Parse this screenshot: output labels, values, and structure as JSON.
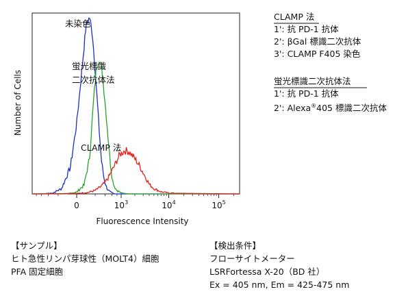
{
  "chart_data": {
    "type": "line",
    "xlabel": "Fluorescence Intensity",
    "ylabel": "Number of Cells",
    "xscale": "biexponential",
    "x_tick_labels": [
      {
        "base": "0",
        "exp": ""
      },
      {
        "base": "10",
        "exp": "3"
      },
      {
        "base": "10",
        "exp": "4"
      },
      {
        "base": "10",
        "exp": "5"
      }
    ],
    "x_tick_values": [
      0,
      1000,
      10000,
      100000
    ],
    "xlim": [
      -1000,
      260000
    ],
    "ylim": [
      0,
      100
    ],
    "grid": false,
    "series": [
      {
        "name": "未染色",
        "color": "#1a2bd0",
        "x": [
          -1000,
          -600,
          -300,
          -150,
          -50,
          0,
          40,
          80,
          120,
          160,
          200,
          240,
          280,
          320,
          380,
          450,
          550,
          700,
          1000,
          100000
        ],
        "y": [
          0,
          0,
          0.5,
          3,
          15,
          40,
          70,
          95,
          100,
          90,
          70,
          50,
          32,
          18,
          8,
          3,
          1,
          0,
          0,
          0
        ]
      },
      {
        "name": "蛍光標識二次抗体法",
        "color": "#27a12a",
        "x": [
          -1000,
          -400,
          -100,
          0,
          60,
          120,
          170,
          220,
          270,
          320,
          360,
          400,
          450,
          500,
          560,
          620,
          700,
          800,
          1000,
          1500,
          3000,
          100000
        ],
        "y": [
          0,
          0,
          0,
          1,
          5,
          20,
          50,
          72,
          76,
          71,
          62,
          52,
          40,
          28,
          16,
          8,
          4,
          2,
          0.5,
          0,
          0,
          0
        ]
      },
      {
        "name": "CLAMP 法",
        "color": "#e0201c",
        "x": [
          -1000,
          0,
          100,
          200,
          300,
          400,
          500,
          600,
          700,
          800,
          900,
          1000,
          1200,
          1500,
          2000,
          2500,
          3000,
          3500,
          4000,
          5000,
          7000,
          10000,
          20000,
          50000,
          100000,
          260000
        ],
        "y": [
          0,
          0.3,
          0.8,
          2,
          4,
          6.5,
          9.5,
          13,
          16,
          19,
          21.5,
          23,
          24.5,
          24,
          20,
          16,
          12,
          8.5,
          5.5,
          3,
          1.2,
          0.5,
          0.3,
          0.2,
          0.1,
          0
        ]
      }
    ],
    "annotations": [
      "未染色",
      "蛍光標識二次抗体法",
      "CLAMP 法"
    ]
  },
  "labels": {
    "unstained": "未染色",
    "secondary_line1": "蛍光標識",
    "secondary_line2": "二次抗体法",
    "clamp": "CLAMP 法"
  },
  "legend_clamp": {
    "title": "CLAMP 法",
    "step1": "1': 抗 PD-1 抗体",
    "step2": "2': βGal 標識二次抗体",
    "step3": "3': CLAMP F405 染色"
  },
  "legend_secondary": {
    "title": "蛍光標識二次抗体法",
    "step1": "1': 抗 PD-1 抗体",
    "step2_prefix": "2': Alexa",
    "step2_sup": "®",
    "step2_suffix": "405 標識二次抗体"
  },
  "sample": {
    "title": "【サンプル】",
    "line1": "ヒト急性リンパ芽球性（MOLT4）細胞",
    "line2": "PFA 固定細胞"
  },
  "conditions": {
    "title": "【検出条件】",
    "line1": "フローサイトメーター",
    "line2": "LSRFortessa X-20（BD 社）",
    "line3": "Ex = 405 nm, Em = 425-475 nm"
  }
}
